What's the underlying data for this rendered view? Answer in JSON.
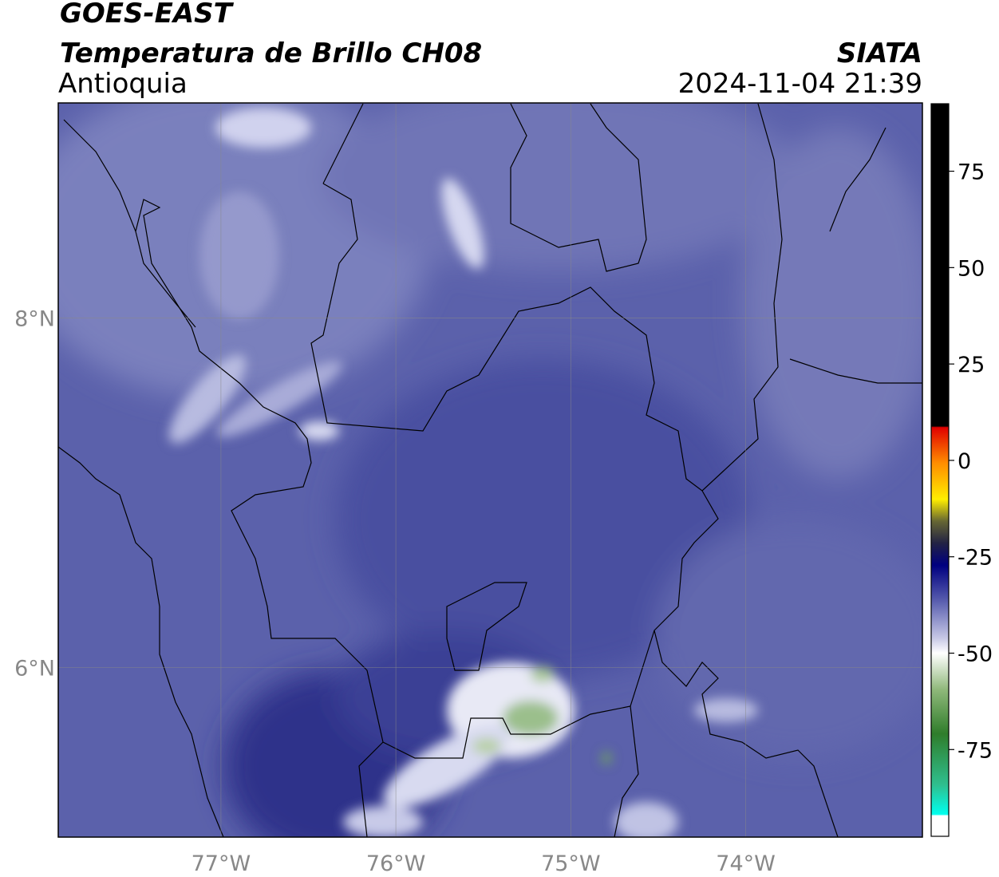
{
  "header": {
    "title": "GOES-EAST",
    "subtitle": "Temperatura de Brillo CH08",
    "region": "Antioquia",
    "source": "SIATA",
    "datetime": "2024-11-04 21:39"
  },
  "map": {
    "xlim": [
      -77.93,
      -72.99
    ],
    "ylim": [
      5.03,
      9.23
    ],
    "xticks": [
      {
        "value": -77,
        "label": "77°W"
      },
      {
        "value": -76,
        "label": "76°W"
      },
      {
        "value": -75,
        "label": "75°W"
      },
      {
        "value": -74,
        "label": "74°W"
      }
    ],
    "yticks": [
      {
        "value": 8,
        "label": "8°N"
      },
      {
        "value": 6,
        "label": "6°N"
      }
    ]
  },
  "colorbar": {
    "lim": [
      -97.5,
      92.5
    ],
    "ticks": [
      75,
      50,
      25,
      0,
      -25,
      -50,
      -75
    ]
  }
}
